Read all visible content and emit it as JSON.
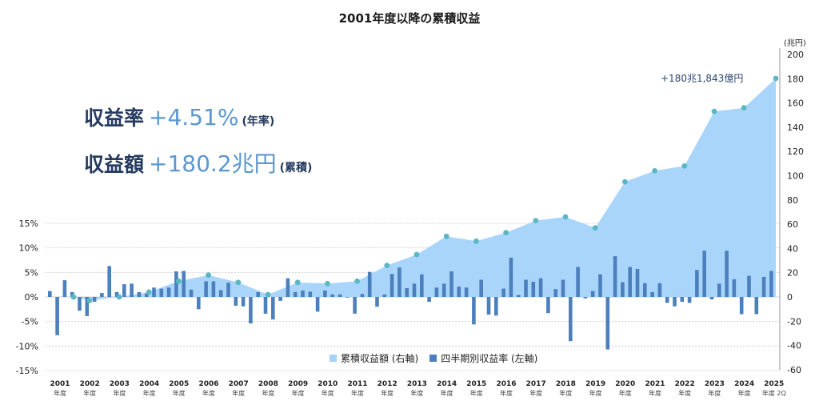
{
  "page": {
    "title": "2001年度以降の累積収益",
    "kpi_rate": {
      "label": "収益率",
      "value": "+4.51%",
      "note": "(年率)"
    },
    "kpi_amount": {
      "label": "収益額",
      "value": "+180.2兆円",
      "note": "(累積)"
    },
    "right_unit": "(兆円)",
    "annotation": "+180兆1,843億円"
  },
  "colors": {
    "area": "#a5d3fb",
    "bar": "#4b80bd",
    "dot": "#5bb8c3",
    "grid": "#cccccc"
  },
  "chart_data": {
    "type": "bar+area",
    "x_labels": [
      {
        "year": "2001",
        "sub": "年度"
      },
      {
        "year": "2002",
        "sub": "年度"
      },
      {
        "year": "2003",
        "sub": "年度"
      },
      {
        "year": "2004",
        "sub": "年度"
      },
      {
        "year": "2005",
        "sub": "年度"
      },
      {
        "year": "2006",
        "sub": "年度"
      },
      {
        "year": "2007",
        "sub": "年度"
      },
      {
        "year": "2008",
        "sub": "年度"
      },
      {
        "year": "2009",
        "sub": "年度"
      },
      {
        "year": "2010",
        "sub": "年度"
      },
      {
        "year": "2011",
        "sub": "年度"
      },
      {
        "year": "2012",
        "sub": "年度"
      },
      {
        "year": "2013",
        "sub": "年度"
      },
      {
        "year": "2014",
        "sub": "年度"
      },
      {
        "year": "2015",
        "sub": "年度"
      },
      {
        "year": "2016",
        "sub": "年度"
      },
      {
        "year": "2017",
        "sub": "年度"
      },
      {
        "year": "2018",
        "sub": "年度"
      },
      {
        "year": "2019",
        "sub": "年度"
      },
      {
        "year": "2020",
        "sub": "年度"
      },
      {
        "year": "2021",
        "sub": "年度"
      },
      {
        "year": "2022",
        "sub": "年度"
      },
      {
        "year": "2023",
        "sub": "年度"
      },
      {
        "year": "2024",
        "sub": "年度"
      },
      {
        "year": "2025",
        "sub": "年度 2Q"
      }
    ],
    "left_axis": {
      "ticks": [
        "15%",
        "10%",
        "5%",
        "0%",
        "-5%",
        "-10%",
        "-15%"
      ],
      "range": [
        -15,
        15
      ]
    },
    "right_axis": {
      "ticks": [
        "200",
        "180",
        "160",
        "140",
        "120",
        "100",
        "80",
        "60",
        "40",
        "20",
        "0",
        "-20",
        "-40",
        "-60"
      ],
      "range": [
        -60,
        200
      ]
    },
    "series": [
      {
        "name": "累積収益額 (右軸)",
        "type": "area",
        "points": [
          [
            "2001",
            0
          ],
          [
            "2002",
            -3
          ],
          [
            "2003",
            0
          ],
          [
            "2004",
            4
          ],
          [
            "2005",
            13
          ],
          [
            "2006",
            18
          ],
          [
            "2007",
            12
          ],
          [
            "2008",
            2
          ],
          [
            "2009",
            12
          ],
          [
            "2010",
            11
          ],
          [
            "2011",
            13
          ],
          [
            "2012",
            26
          ],
          [
            "2013",
            35
          ],
          [
            "2014",
            50
          ],
          [
            "2015",
            46
          ],
          [
            "2016",
            53
          ],
          [
            "2017",
            63
          ],
          [
            "2018",
            66
          ],
          [
            "2019",
            57
          ],
          [
            "2020",
            95
          ],
          [
            "2021",
            104
          ],
          [
            "2022",
            108
          ],
          [
            "2023",
            153
          ],
          [
            "2024",
            156
          ],
          [
            "2025",
            180.2
          ]
        ]
      },
      {
        "name": "四半期別収益率 (左軸)",
        "type": "bar",
        "values": [
          1.2,
          -7.8,
          3.4,
          1.0,
          -2.8,
          -3.9,
          -1.0,
          0.8,
          6.3,
          1.0,
          2.6,
          2.7,
          1.0,
          0.7,
          1.9,
          1.7,
          1.9,
          5.2,
          5.3,
          1.5,
          -2.5,
          3.2,
          3.2,
          1.4,
          2.9,
          -1.8,
          -1.9,
          -5.4,
          1.0,
          -3.4,
          -4.6,
          -0.8,
          3.8,
          1.0,
          1.3,
          1.1,
          -3.0,
          1.3,
          0.5,
          0.5,
          -0.1,
          -3.4,
          0.6,
          5.1,
          -2.0,
          0.5,
          4.7,
          6.0,
          1.8,
          2.7,
          4.6,
          -1.0,
          1.9,
          2.7,
          5.2,
          2.1,
          1.9,
          -5.6,
          3.5,
          -3.6,
          -3.8,
          1.7,
          8.0,
          0.4,
          3.5,
          3.1,
          3.8,
          -3.3,
          1.6,
          3.5,
          -9.0,
          6.1,
          -0.3,
          1.2,
          4.6,
          -10.7,
          8.3,
          3.0,
          6.1,
          5.7,
          2.8,
          1.0,
          2.8,
          -1.2,
          -1.9,
          -1.0,
          -1.2,
          5.5,
          9.4,
          -0.5,
          2.7,
          9.4,
          3.6,
          -3.5,
          4.3,
          -3.5,
          4.1,
          5.3
        ]
      }
    ],
    "legend_position": "bottom-center",
    "grid": "horizontal"
  }
}
